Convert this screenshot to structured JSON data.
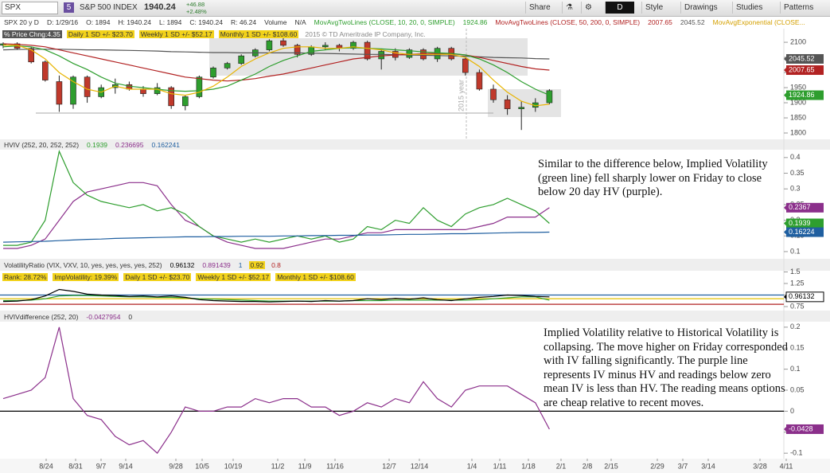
{
  "toolbar": {
    "symbol": "SPX",
    "name": "S&P 500 INDEX",
    "last": "1940.24",
    "change": "+46.88",
    "change_pct": "+2.48%",
    "timeframe": "D",
    "buttons": [
      "Share",
      "Style",
      "Drawings",
      "Studies",
      "Patterns"
    ]
  },
  "price": {
    "header": [
      {
        "text": "SPX 20 y D",
        "color": "#333"
      },
      {
        "text": "D: 1/29/16",
        "color": "#333"
      },
      {
        "text": "O: 1894",
        "color": "#333"
      },
      {
        "text": "H: 1940.24",
        "color": "#333"
      },
      {
        "text": "L: 1894",
        "color": "#333"
      },
      {
        "text": "C: 1940.24",
        "color": "#333"
      },
      {
        "text": "R: 46.24",
        "color": "#333"
      },
      {
        "text": "Volume",
        "color": "#333"
      },
      {
        "text": "N/A",
        "color": "#333"
      },
      {
        "text": "MovAvgTwoLines (CLOSE, 10, 20, 0, SIMPLE)",
        "color": "#2e9e2e"
      },
      {
        "text": "1924.86",
        "color": "#2e9e2e"
      },
      {
        "text": "MovAvgTwoLines (CLOSE, 50, 200, 0, SIMPLE)",
        "color": "#b22222"
      },
      {
        "text": "2007.65",
        "color": "#b22222"
      },
      {
        "text": "2045.52",
        "color": "#555"
      },
      {
        "text": "MovAvgExponential (CLOSE...",
        "color": "#d4a000"
      }
    ],
    "header2": [
      {
        "text": "% Price Chng:4.35",
        "color": "#fff",
        "bg": "#555"
      },
      {
        "text": "Daily 1 SD +/- $23.70",
        "color": "#333",
        "bg": "#f2d21b"
      },
      {
        "text": "Weekly 1 SD +/- $52.17",
        "color": "#333",
        "bg": "#f2d21b"
      },
      {
        "text": "Monthly 1 SD +/- $108.60",
        "color": "#333",
        "bg": "#f2d21b"
      },
      {
        "text": "2015 © TD Ameritrade IP Company, Inc.",
        "color": "#888"
      }
    ],
    "year_label": "2015 year",
    "ylim": [
      1779,
      2145
    ],
    "yticks": [
      1800,
      1850,
      1900,
      1950,
      2000,
      2050,
      2100
    ],
    "up_color": "#2e9e2e",
    "down_color": "#c0392b",
    "ohlc": [
      [
        2090,
        2100,
        2080,
        2095
      ],
      [
        2095,
        2100,
        2075,
        2080
      ],
      [
        2080,
        2085,
        2030,
        2035
      ],
      [
        2035,
        2040,
        1970,
        1975
      ],
      [
        1970,
        1990,
        1870,
        1895
      ],
      [
        1895,
        1990,
        1880,
        1985
      ],
      [
        1985,
        1990,
        1900,
        1920
      ],
      [
        1920,
        1960,
        1915,
        1950
      ],
      [
        1950,
        1980,
        1930,
        1960
      ],
      [
        1960,
        1970,
        1940,
        1945
      ],
      [
        1945,
        1955,
        1920,
        1930
      ],
      [
        1930,
        1965,
        1925,
        1950
      ],
      [
        1950,
        1955,
        1880,
        1890
      ],
      [
        1890,
        1925,
        1875,
        1920
      ],
      [
        1920,
        1990,
        1915,
        1985
      ],
      [
        1985,
        2020,
        1980,
        2015
      ],
      [
        2015,
        2035,
        2010,
        2030
      ],
      [
        2030,
        2060,
        2025,
        2055
      ],
      [
        2055,
        2080,
        2050,
        2075
      ],
      [
        2075,
        2110,
        2070,
        2105
      ],
      [
        2105,
        2115,
        2085,
        2090
      ],
      [
        2090,
        2095,
        2050,
        2060
      ],
      [
        2060,
        2090,
        2055,
        2085
      ],
      [
        2085,
        2100,
        2075,
        2090
      ],
      [
        2090,
        2095,
        2070,
        2080
      ],
      [
        2080,
        2105,
        2075,
        2100
      ],
      [
        2100,
        2105,
        2040,
        2045
      ],
      [
        2045,
        2075,
        2010,
        2070
      ],
      [
        2070,
        2080,
        2040,
        2050
      ],
      [
        2050,
        2080,
        2045,
        2075
      ],
      [
        2075,
        2080,
        2040,
        2045
      ],
      [
        2045,
        2085,
        2035,
        2080
      ],
      [
        2080,
        2085,
        2040,
        2045
      ],
      [
        2045,
        2050,
        1990,
        2000
      ],
      [
        2000,
        2010,
        1940,
        1945
      ],
      [
        1945,
        1960,
        1900,
        1910
      ],
      [
        1910,
        1925,
        1860,
        1880
      ],
      [
        1880,
        1905,
        1810,
        1885
      ],
      [
        1885,
        1915,
        1870,
        1900
      ],
      [
        1900,
        1945,
        1895,
        1940
      ]
    ],
    "series": [
      {
        "color": "#555555",
        "badge": "2045.52",
        "values": [
          2075,
          2076,
          2077,
          2077,
          2077,
          2076,
          2075,
          2075,
          2074,
          2073,
          2072,
          2071,
          2069,
          2068,
          2067,
          2066,
          2066,
          2065,
          2065,
          2065,
          2065,
          2065,
          2064,
          2063,
          2062,
          2061,
          2060,
          2060,
          2059,
          2058,
          2057,
          2056,
          2055,
          2054,
          2052,
          2050,
          2049,
          2048,
          2046,
          2045
        ]
      },
      {
        "color": "#b22222",
        "badge": "2007.65",
        "values": [
          2095,
          2093,
          2090,
          2085,
          2075,
          2065,
          2055,
          2045,
          2035,
          2025,
          2015,
          2005,
          1995,
          1985,
          1980,
          1975,
          1972,
          1975,
          1980,
          1988,
          1995,
          2005,
          2015,
          2025,
          2035,
          2045,
          2050,
          2055,
          2058,
          2060,
          2062,
          2063,
          2062,
          2058,
          2050,
          2040,
          2030,
          2020,
          2012,
          2008
        ]
      },
      {
        "color": "#2e9e2e",
        "badge": "1924.86",
        "values": [
          2085,
          2088,
          2085,
          2075,
          2055,
          2030,
          2010,
          1985,
          1965,
          1955,
          1950,
          1945,
          1940,
          1938,
          1940,
          1945,
          1955,
          1975,
          1995,
          2020,
          2040,
          2055,
          2070,
          2075,
          2080,
          2082,
          2080,
          2078,
          2075,
          2072,
          2068,
          2065,
          2063,
          2058,
          2045,
          2025,
          2000,
          1970,
          1945,
          1925
        ]
      },
      {
        "color": "#e8b400",
        "values": [
          2090,
          2090,
          2075,
          2045,
          2000,
          1970,
          1945,
          1935,
          1955,
          1945,
          1945,
          1945,
          1930,
          1925,
          1935,
          1955,
          1985,
          2020,
          2045,
          2065,
          2080,
          2085,
          2085,
          2080,
          2080,
          2085,
          2080,
          2075,
          2065,
          2060,
          2060,
          2060,
          2060,
          2050,
          2020,
          1975,
          1935,
          1905,
          1890,
          1895
        ]
      }
    ]
  },
  "hviv": {
    "header": [
      {
        "text": "HVIV (252, 20, 252, 252)",
        "color": "#333"
      },
      {
        "text": "0.1939",
        "color": "#2e9e2e"
      },
      {
        "text": "0.236695",
        "color": "#8b2f8b"
      },
      {
        "text": "0.162241",
        "color": "#1f5fa0"
      }
    ],
    "annotation": "Similar to the difference below, Implied Volatility (green line) fell sharply lower on Friday to close below 20 day HV (purple).",
    "ylim": [
      0.077,
      0.425
    ],
    "yticks": [
      0.1,
      0.15,
      0.2,
      0.25,
      0.3,
      0.35,
      0.4
    ],
    "series": [
      {
        "color": "#8b2f8b",
        "badge": "0.2367",
        "values": [
          0.11,
          0.11,
          0.12,
          0.14,
          0.2,
          0.26,
          0.29,
          0.3,
          0.31,
          0.32,
          0.32,
          0.31,
          0.25,
          0.2,
          0.18,
          0.15,
          0.13,
          0.12,
          0.11,
          0.11,
          0.11,
          0.12,
          0.13,
          0.14,
          0.14,
          0.15,
          0.16,
          0.16,
          0.17,
          0.17,
          0.17,
          0.17,
          0.17,
          0.17,
          0.18,
          0.19,
          0.21,
          0.21,
          0.21,
          0.24
        ]
      },
      {
        "color": "#2e9e2e",
        "badge": "0.1939",
        "values": [
          0.12,
          0.12,
          0.13,
          0.2,
          0.42,
          0.32,
          0.28,
          0.26,
          0.25,
          0.24,
          0.25,
          0.23,
          0.24,
          0.22,
          0.18,
          0.15,
          0.14,
          0.13,
          0.14,
          0.13,
          0.14,
          0.15,
          0.14,
          0.15,
          0.13,
          0.14,
          0.18,
          0.17,
          0.2,
          0.19,
          0.24,
          0.2,
          0.18,
          0.22,
          0.24,
          0.25,
          0.27,
          0.25,
          0.23,
          0.19
        ]
      },
      {
        "color": "#1f5fa0",
        "badge": "0.16224",
        "values": [
          0.13,
          0.131,
          0.132,
          0.133,
          0.135,
          0.137,
          0.139,
          0.14,
          0.142,
          0.143,
          0.144,
          0.145,
          0.146,
          0.147,
          0.147,
          0.148,
          0.148,
          0.149,
          0.149,
          0.149,
          0.15,
          0.15,
          0.151,
          0.151,
          0.152,
          0.152,
          0.153,
          0.153,
          0.154,
          0.155,
          0.155,
          0.156,
          0.157,
          0.157,
          0.158,
          0.159,
          0.16,
          0.161,
          0.161,
          0.162
        ]
      }
    ]
  },
  "ratio": {
    "header": [
      {
        "text": "VolatilityRatio (VIX, VXV, 10, yes, yes, yes, yes, 252)",
        "color": "#333"
      },
      {
        "text": "0.96132",
        "color": "#000"
      },
      {
        "text": "0.891439",
        "color": "#8b2f8b"
      },
      {
        "text": "1",
        "color": "#1f5fa0"
      },
      {
        "text": "0.92",
        "color": "#333",
        "bg": "#f2d21b"
      },
      {
        "text": "0.8",
        "color": "#b22222"
      }
    ],
    "header2": [
      {
        "text": "Rank: 28.72%",
        "color": "#333",
        "bg": "#f2d21b"
      },
      {
        "text": "ImpVolatility: 19.39%",
        "color": "#333",
        "bg": "#f2d21b"
      },
      {
        "text": "Daily 1 SD +/- $23.70",
        "color": "#333",
        "bg": "#f2d21b"
      },
      {
        "text": "Weekly 1 SD +/- $52.17",
        "color": "#333",
        "bg": "#f2d21b"
      },
      {
        "text": "Monthly 1 SD +/- $108.60",
        "color": "#333",
        "bg": "#f2d21b"
      }
    ],
    "ylim": [
      0.664,
      1.526
    ],
    "yticks": [
      0.75,
      1,
      1.25,
      1.5
    ],
    "levels": [
      {
        "value": 1,
        "color": "#1f5fa0"
      },
      {
        "value": 0.92,
        "color": "#e0c000"
      },
      {
        "value": 0.8,
        "color": "#b22222"
      }
    ],
    "series": [
      {
        "color": "#2e9e2e",
        "values": [
          0.88,
          0.88,
          0.89,
          0.92,
          0.98,
          0.99,
          0.99,
          0.98,
          0.97,
          0.96,
          0.96,
          0.95,
          0.95,
          0.94,
          0.92,
          0.91,
          0.9,
          0.89,
          0.88,
          0.87,
          0.87,
          0.87,
          0.87,
          0.87,
          0.87,
          0.88,
          0.88,
          0.88,
          0.89,
          0.89,
          0.89,
          0.89,
          0.89,
          0.89,
          0.9,
          0.92,
          0.94,
          0.96,
          0.96,
          0.89
        ]
      },
      {
        "color": "#000000",
        "badge": "0.96132",
        "values": [
          0.86,
          0.87,
          0.9,
          0.98,
          1.12,
          1.08,
          1.02,
          1.0,
          0.99,
          0.97,
          0.98,
          0.96,
          0.98,
          0.95,
          0.9,
          0.88,
          0.87,
          0.86,
          0.86,
          0.85,
          0.86,
          0.87,
          0.86,
          0.88,
          0.87,
          0.88,
          0.92,
          0.9,
          0.93,
          0.91,
          0.94,
          0.9,
          0.88,
          0.92,
          0.95,
          0.97,
          1.0,
          0.99,
          0.97,
          0.96
        ]
      }
    ]
  },
  "diff": {
    "header": [
      {
        "text": "HVIVdifference (252, 20)",
        "color": "#333"
      },
      {
        "text": "-0.0427954",
        "color": "#8b2f8b"
      },
      {
        "text": "0",
        "color": "#333"
      }
    ],
    "annotation": "Implied Volatility relative to Historical Volatility is collapsing.  The move higher on Friday corresponded with IV falling significantly.  The purple line represents IV minus HV and readings below zero mean IV is less than HV.  The reading means options are cheap relative to recent moves.",
    "ylim": [
      -0.113,
      0.213
    ],
    "yticks": [
      -0.1,
      -0.05,
      0,
      0.05,
      0.1,
      0.15,
      0.2
    ],
    "levels": [
      {
        "value": 0,
        "color": "#000000"
      }
    ],
    "series": [
      {
        "color": "#8b2f8b",
        "badge": "-0.0428",
        "values": [
          0.03,
          0.04,
          0.05,
          0.08,
          0.2,
          0.03,
          -0.01,
          -0.02,
          -0.06,
          -0.08,
          -0.07,
          -0.1,
          -0.05,
          0.01,
          0.0,
          0.0,
          0.01,
          0.01,
          0.03,
          0.02,
          0.03,
          0.03,
          0.01,
          0.01,
          -0.01,
          0.0,
          0.02,
          0.01,
          0.03,
          0.02,
          0.07,
          0.03,
          0.01,
          0.05,
          0.06,
          0.06,
          0.06,
          0.04,
          0.02,
          -0.0428
        ]
      }
    ]
  },
  "x_labels": [
    "8/24",
    "8/31",
    "9/7",
    "9/14",
    "9/28",
    "10/5",
    "10/19",
    "11/2",
    "11/9",
    "11/16",
    "12/7",
    "12/14",
    "1/4",
    "1/11",
    "1/18",
    "2/1",
    "2/8",
    "2/15",
    "2/29",
    "3/7",
    "3/14",
    "3/28",
    "4/11"
  ]
}
